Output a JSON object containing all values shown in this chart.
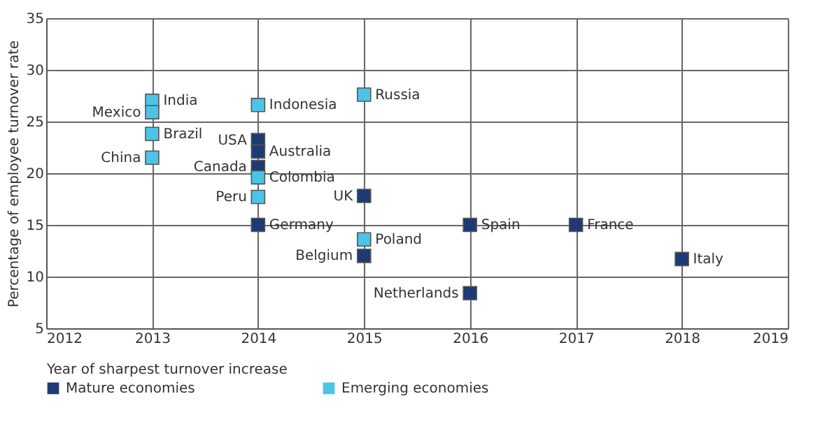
{
  "chart_data": {
    "type": "scatter",
    "xlabel": "Year of sharpest turnover increase",
    "ylabel": "Percentage of employee turnover rate",
    "xlim": [
      2012,
      2019
    ],
    "xticks": [
      2012,
      2013,
      2014,
      2015,
      2016,
      2017,
      2018,
      2019
    ],
    "ylim": [
      5,
      35
    ],
    "yticks": [
      5,
      10,
      15,
      20,
      25,
      30,
      35
    ],
    "grid": true,
    "legend": "bottom left",
    "marker": "square",
    "series": [
      {
        "name": "Mature economies",
        "color": "#1f3a73",
        "x": [
          2014,
          2014,
          2014,
          2014,
          2015,
          2015,
          2016,
          2016,
          2017,
          2018
        ],
        "values": [
          23.2,
          22.1,
          20.6,
          15.0,
          17.8,
          12.0,
          15.0,
          8.4,
          15.0,
          11.7
        ]
      },
      {
        "name": "Emerging economies",
        "color": "#4bc4e8",
        "x": [
          2013,
          2013,
          2013,
          2013,
          2014,
          2014,
          2014,
          2015,
          2015
        ],
        "values": [
          27.0,
          25.9,
          23.8,
          21.5,
          26.6,
          19.6,
          17.7,
          27.6,
          13.6
        ]
      }
    ],
    "annotations": [
      {
        "text": "India",
        "x": 2013,
        "y": 27.0
      },
      {
        "text": "Mexico",
        "x": 2013,
        "y": 25.9
      },
      {
        "text": "Brazil",
        "x": 2013,
        "y": 23.8
      },
      {
        "text": "China",
        "x": 2013,
        "y": 21.5
      },
      {
        "text": "Indonesia",
        "x": 2014,
        "y": 26.6
      },
      {
        "text": "USA",
        "x": 2014,
        "y": 23.2
      },
      {
        "text": "Australia",
        "x": 2014,
        "y": 22.1
      },
      {
        "text": "Canada",
        "x": 2014,
        "y": 20.6
      },
      {
        "text": "Colombia",
        "x": 2014,
        "y": 19.6
      },
      {
        "text": "Peru",
        "x": 2014,
        "y": 17.7
      },
      {
        "text": "Germany",
        "x": 2014,
        "y": 15.0
      },
      {
        "text": "Russia",
        "x": 2015,
        "y": 27.6
      },
      {
        "text": "UK",
        "x": 2015,
        "y": 17.8
      },
      {
        "text": "Poland",
        "x": 2015,
        "y": 13.6
      },
      {
        "text": "Belgium",
        "x": 2015,
        "y": 12.0
      },
      {
        "text": "Spain",
        "x": 2016,
        "y": 15.0
      },
      {
        "text": "Netherlands",
        "x": 2016,
        "y": 8.4
      },
      {
        "text": "France",
        "x": 2017,
        "y": 15.0
      },
      {
        "text": "Italy",
        "x": 2018,
        "y": 11.7
      }
    ]
  }
}
